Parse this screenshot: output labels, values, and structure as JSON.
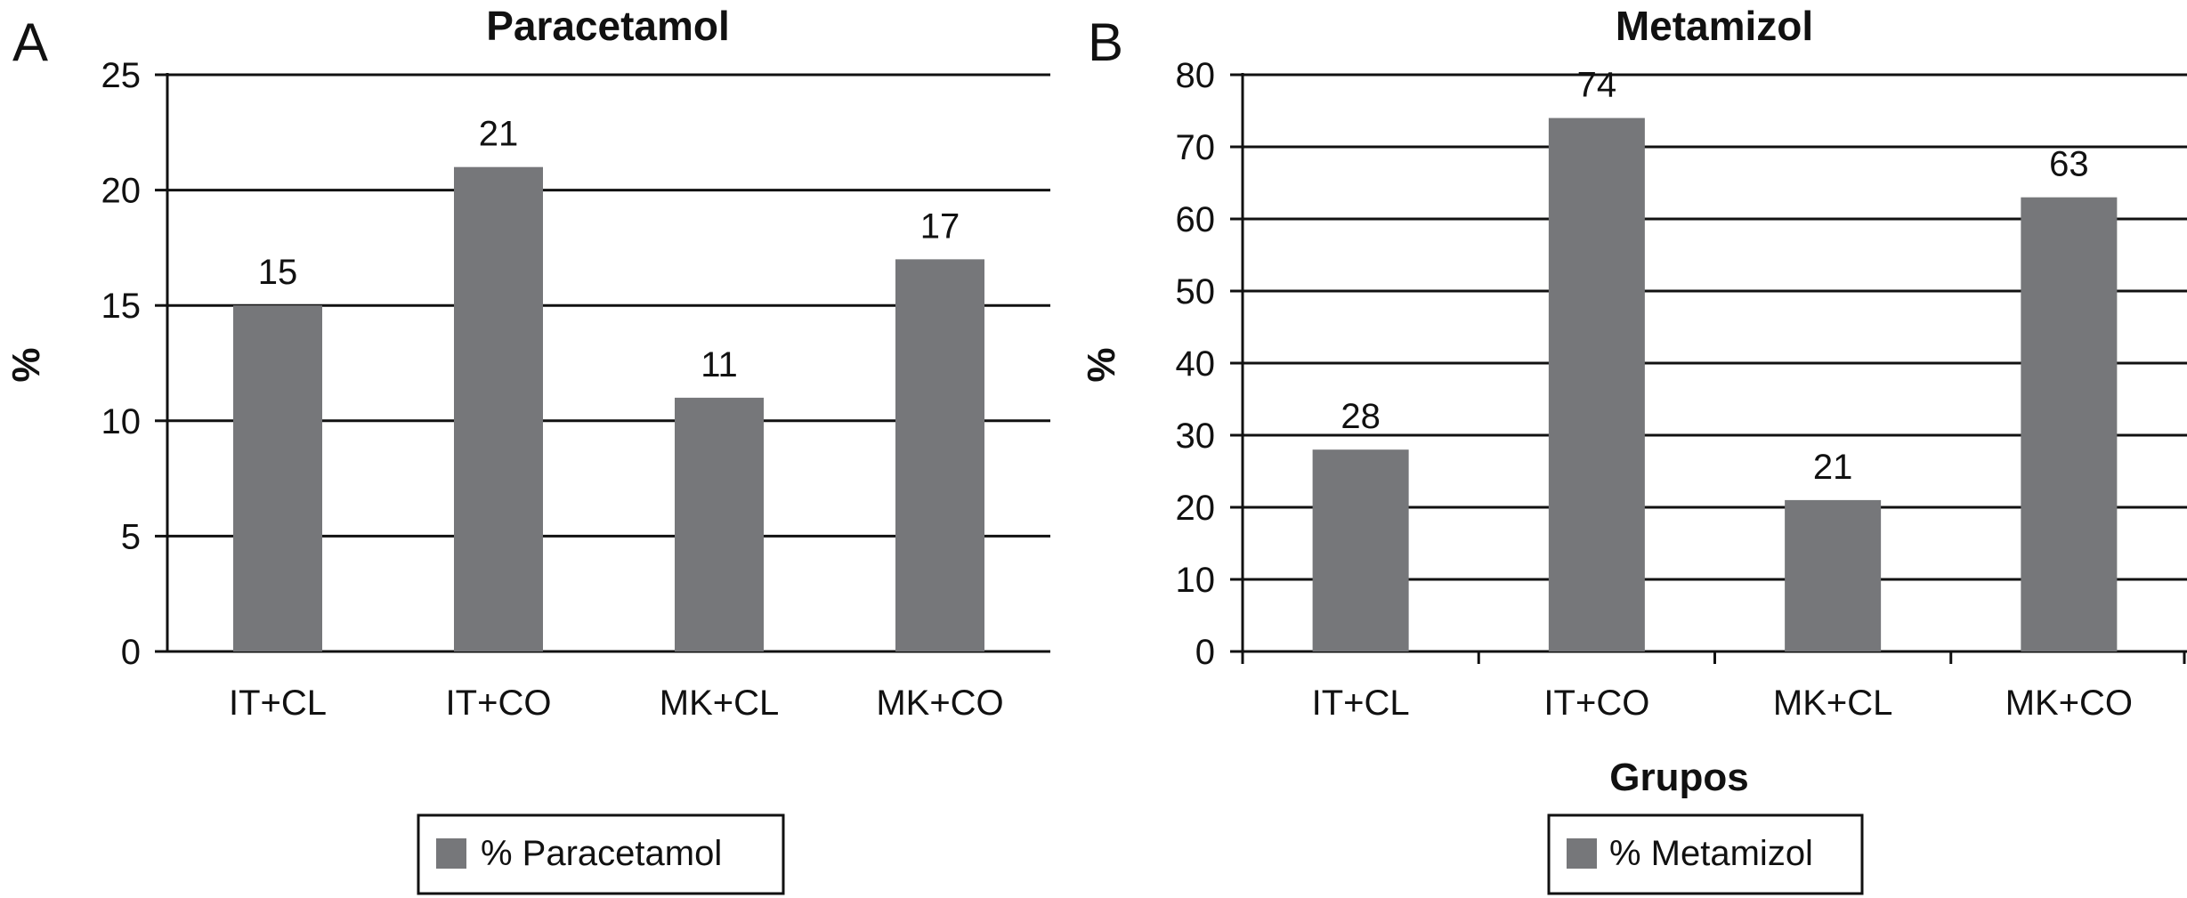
{
  "chart_data": [
    {
      "panel": "A",
      "type": "bar",
      "title": "Paracetamol",
      "ylabel": "%",
      "xlabel": "",
      "categories": [
        "IT+CL",
        "IT+CO",
        "MK+CL",
        "MK+CO"
      ],
      "series": [
        {
          "name": "% Paracetamol",
          "values": [
            15,
            21,
            11,
            17
          ],
          "color": "#76777a"
        }
      ],
      "data_labels": [
        "15",
        "21",
        "11",
        "17"
      ],
      "ylim": [
        0,
        25
      ],
      "yticks": [
        "0",
        "5",
        "10",
        "15",
        "20",
        "25"
      ],
      "grid": true,
      "legend": "bottom"
    },
    {
      "panel": "B",
      "type": "bar",
      "title": "Metamizol",
      "ylabel": "%",
      "xlabel": "Grupos",
      "categories": [
        "IT+CL",
        "IT+CO",
        "MK+CL",
        "MK+CO"
      ],
      "series": [
        {
          "name": "% Metamizol",
          "values": [
            28,
            74,
            21,
            63
          ],
          "color": "#76777a"
        }
      ],
      "data_labels": [
        "28",
        "74",
        "21",
        "63"
      ],
      "ylim": [
        0,
        80
      ],
      "yticks": [
        "0",
        "10",
        "20",
        "30",
        "40",
        "50",
        "60",
        "70",
        "80"
      ],
      "grid": true,
      "legend": "bottom"
    }
  ]
}
